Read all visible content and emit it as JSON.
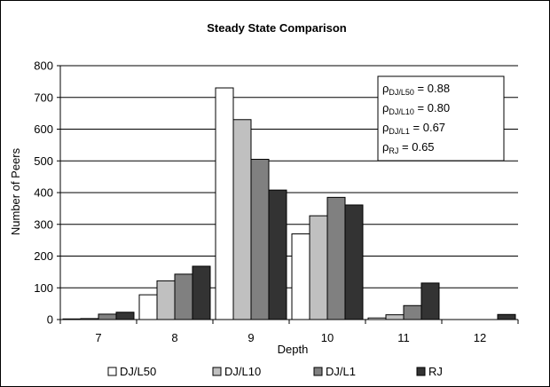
{
  "chart_data": {
    "type": "bar",
    "title": "Steady State Comparison",
    "xlabel": "Depth",
    "ylabel": "Number of Peers",
    "ylim": [
      0,
      800
    ],
    "yticks": [
      0,
      100,
      200,
      300,
      400,
      500,
      600,
      700,
      800
    ],
    "grid": true,
    "legend_position": "bottom",
    "categories": [
      "7",
      "8",
      "9",
      "10",
      "11",
      "12"
    ],
    "series": [
      {
        "name": "DJ/L50",
        "color": "#ffffff",
        "values": [
          2,
          78,
          730,
          270,
          5,
          0
        ]
      },
      {
        "name": "DJ/L10",
        "color": "#c0c0c0",
        "values": [
          3,
          122,
          630,
          327,
          15,
          0
        ]
      },
      {
        "name": "DJ/L1",
        "color": "#808080",
        "values": [
          17,
          143,
          505,
          385,
          44,
          0
        ]
      },
      {
        "name": "RJ",
        "color": "#333333",
        "values": [
          23,
          168,
          408,
          361,
          115,
          16
        ]
      }
    ],
    "annotation": {
      "lines": [
        {
          "sym": "ρ",
          "sub": "DJ/L50",
          "text": " = 0.88"
        },
        {
          "sym": "ρ",
          "sub": "DJ/L10",
          "text": " = 0.80"
        },
        {
          "sym": "ρ",
          "sub": "DJ/L1",
          "text": " = 0.67"
        },
        {
          "sym": "ρ",
          "sub": "RJ",
          "text": " = 0.65"
        }
      ]
    }
  }
}
